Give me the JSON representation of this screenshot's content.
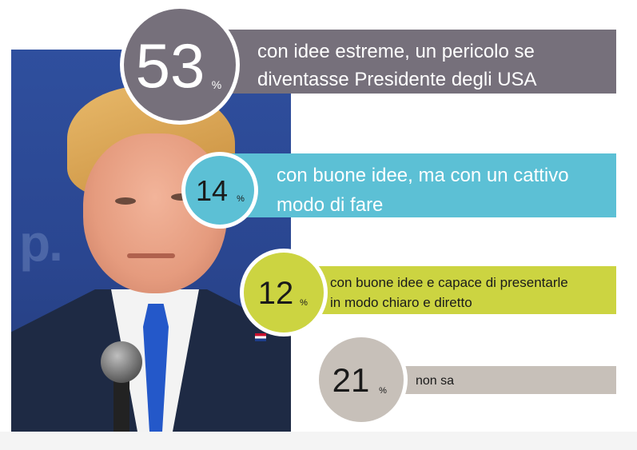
{
  "chart_data": {
    "type": "bar",
    "unit": "%",
    "items": [
      {
        "value": 53,
        "label": [
          "con idee estreme, un pericolo se",
          "diventasse Presidente degli USA"
        ],
        "color": "#76707b"
      },
      {
        "value": 14,
        "label": [
          "con buone idee, ma con un cattivo",
          "modo di fare"
        ],
        "color": "#5cc0d5"
      },
      {
        "value": 12,
        "label": [
          "con buone idee e capace di presentarle",
          "in modo chiaro e diretto"
        ],
        "color": "#ccd441"
      },
      {
        "value": 21,
        "label": [
          "non sa"
        ],
        "color": "#c7c0b9"
      }
    ]
  },
  "photo": {
    "background_text": "p."
  }
}
